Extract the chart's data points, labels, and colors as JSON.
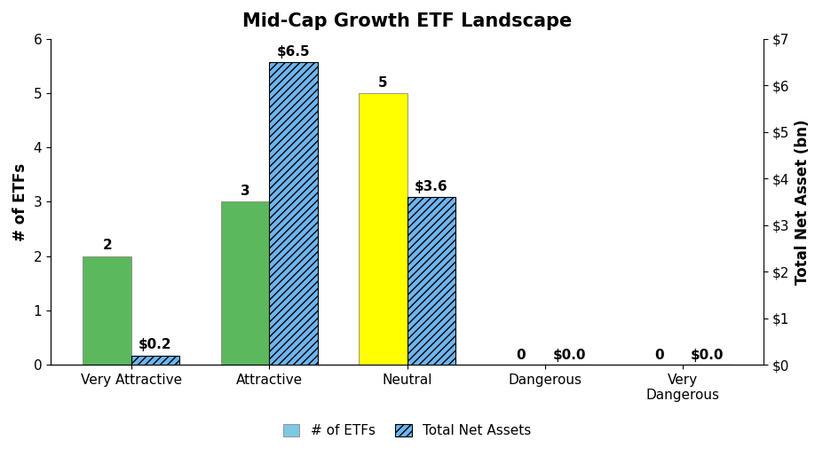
{
  "title": "Mid-Cap Growth ETF Landscape",
  "categories": [
    "Very Attractive",
    "Attractive",
    "Neutral",
    "Dangerous",
    "Very\nDangerous"
  ],
  "etf_counts": [
    2,
    3,
    5,
    0,
    0
  ],
  "net_assets": [
    0.2,
    6.5,
    3.6,
    0.0,
    0.0
  ],
  "etf_labels": [
    "2",
    "3",
    "5",
    "0",
    "0"
  ],
  "asset_labels": [
    "$0.2",
    "$6.5",
    "$3.6",
    "$0.0",
    "$0.0"
  ],
  "bar_colors": [
    "#5cb85c",
    "#5cb85c",
    "#ffff00",
    "#cccccc",
    "#cccccc"
  ],
  "hatch_facecolor": "#6db6f0",
  "hatch_edgecolor": "#000000",
  "ylabel_left": "# of ETFs",
  "ylabel_right": "Total Net Asset (bn)",
  "ylim_left": [
    0,
    6
  ],
  "ylim_right": [
    0,
    7
  ],
  "yticks_left": [
    0,
    1,
    2,
    3,
    4,
    5,
    6
  ],
  "yticks_right": [
    0,
    1,
    2,
    3,
    4,
    5,
    6,
    7
  ],
  "ytick_labels_right": [
    "$0",
    "$1",
    "$2",
    "$3",
    "$4",
    "$5",
    "$6",
    "$7"
  ],
  "legend_etf_label": "# of ETFs",
  "legend_assets_label": "Total Net Assets",
  "legend_etf_color": "#7ec8e3",
  "background_color": "#ffffff",
  "bar_width": 0.35,
  "title_fontsize": 15,
  "axis_fontsize": 11,
  "label_fontsize": 11,
  "tick_fontsize": 11
}
